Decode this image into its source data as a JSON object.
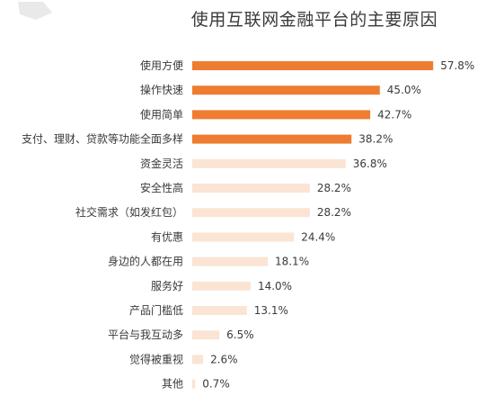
{
  "chart_data": {
    "type": "bar",
    "orientation": "horizontal",
    "title": "使用互联网金融平台的主要原因",
    "categories": [
      "使用方便",
      "操作快速",
      "使用简单",
      "支付、理财、贷款等功能全面多样",
      "资金灵活",
      "安全性高",
      "社交需求（如发红包）",
      "有优惠",
      "身边的人都在用",
      "服务好",
      "产品门槛低",
      "平台与我互动多",
      "觉得被重视",
      "其他"
    ],
    "values": [
      57.8,
      45.0,
      42.7,
      38.2,
      36.8,
      28.2,
      28.2,
      24.4,
      18.1,
      14.0,
      13.1,
      6.5,
      2.6,
      0.7
    ],
    "value_labels": [
      "57.8%",
      "45.0%",
      "42.7%",
      "38.2%",
      "36.8%",
      "28.2%",
      "28.2%",
      "24.4%",
      "18.1%",
      "14.0%",
      "13.1%",
      "6.5%",
      "2.6%",
      "0.7%"
    ],
    "highlight_count": 4,
    "colors": {
      "highlight": "#ee7d32",
      "normal": "#fbe4d3"
    },
    "xlim": [
      0,
      60
    ],
    "grid": false,
    "legend": "none"
  }
}
